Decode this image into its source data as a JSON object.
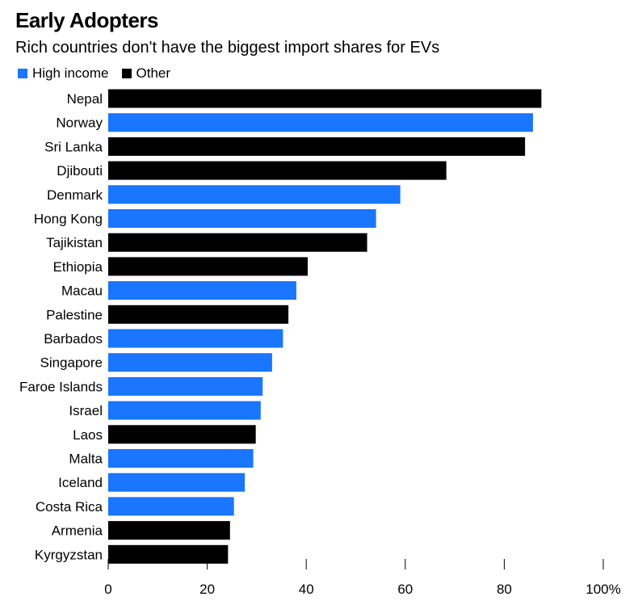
{
  "chart_data": {
    "type": "bar",
    "orientation": "horizontal",
    "title": "Early Adopters",
    "subtitle": "Rich countries don't have the biggest import shares for EVs",
    "legend": [
      {
        "name": "High income",
        "color": "#1a75ff"
      },
      {
        "name": "Other",
        "color": "#000000"
      }
    ],
    "categories": [
      "Nepal",
      "Norway",
      "Sri Lanka",
      "Djibouti",
      "Denmark",
      "Hong Kong",
      "Tajikistan",
      "Ethiopia",
      "Macau",
      "Palestine",
      "Barbados",
      "Singapore",
      "Faroe Islands",
      "Israel",
      "Laos",
      "Malta",
      "Iceland",
      "Costa Rica",
      "Armenia",
      "Kyrgyzstan"
    ],
    "values": [
      87.5,
      85.8,
      84.2,
      68.3,
      59,
      54.1,
      52.3,
      40.3,
      38,
      36.4,
      35.3,
      33.1,
      31.2,
      30.8,
      29.8,
      29.3,
      27.6,
      25.4,
      24.6,
      24.2
    ],
    "groups": [
      "Other",
      "High income",
      "Other",
      "Other",
      "High income",
      "High income",
      "Other",
      "Other",
      "High income",
      "Other",
      "High income",
      "High income",
      "High income",
      "High income",
      "Other",
      "High income",
      "High income",
      "High income",
      "Other",
      "Other"
    ],
    "xlim": [
      0,
      100
    ],
    "xticks": [
      0,
      20,
      40,
      60,
      80,
      100
    ],
    "xtick_labels": [
      "0",
      "20",
      "40",
      "60",
      "80",
      "100%"
    ],
    "xlabel": "",
    "ylabel": "",
    "grid": false
  }
}
